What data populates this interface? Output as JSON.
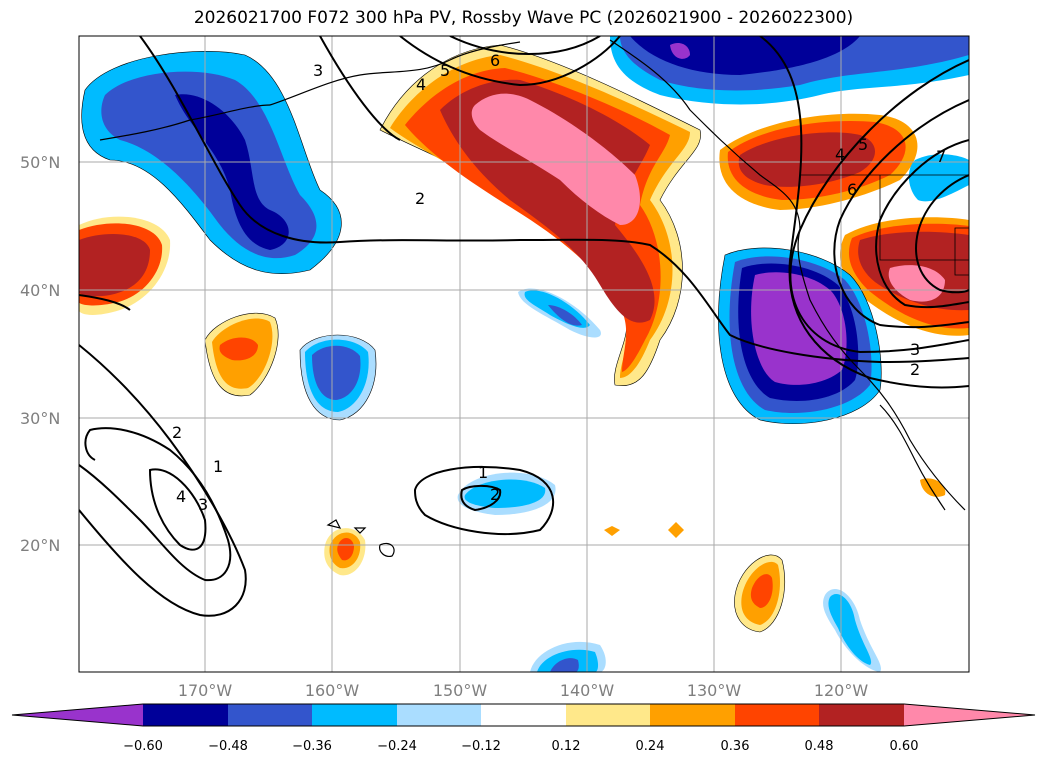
{
  "title": "2026021700 F072 300 hPa PV, Rossby Wave PC (2026021900 - 2026022300)",
  "lat_labels": [
    "50°N",
    "40°N",
    "30°N",
    "20°N"
  ],
  "lon_labels": [
    "170°W",
    "160°W",
    "150°W",
    "140°W",
    "130°W",
    "120°W"
  ],
  "colorbar": {
    "colors": [
      "#9933cc",
      "#000099",
      "#3355cc",
      "#00bbff",
      "#aaddff",
      "#ffffff",
      "#ffe88a",
      "#ffa000",
      "#ff4400",
      "#b22222",
      "#ff88aa"
    ],
    "tick_labels": [
      "−0.60",
      "−0.48",
      "−0.36",
      "−0.24",
      "−0.12",
      "0.12",
      "0.24",
      "0.36",
      "0.48",
      "0.60"
    ]
  },
  "contour_labels": [
    "3",
    "5",
    "6",
    "4",
    "2",
    "7",
    "6",
    "5",
    "4",
    "3",
    "2",
    "2",
    "1",
    "3",
    "4",
    "1",
    "2"
  ]
}
